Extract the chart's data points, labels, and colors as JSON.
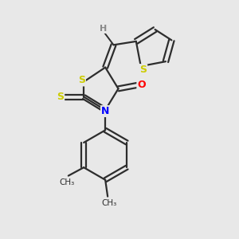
{
  "background_color": "#e8e8e8",
  "bond_color": "#2d2d2d",
  "atom_colors": {
    "S": "#cccc00",
    "N": "#0000ff",
    "O": "#ff0000",
    "H": "#888888",
    "C": "#2d2d2d"
  },
  "figsize": [
    3.0,
    3.0
  ],
  "dpi": 100
}
